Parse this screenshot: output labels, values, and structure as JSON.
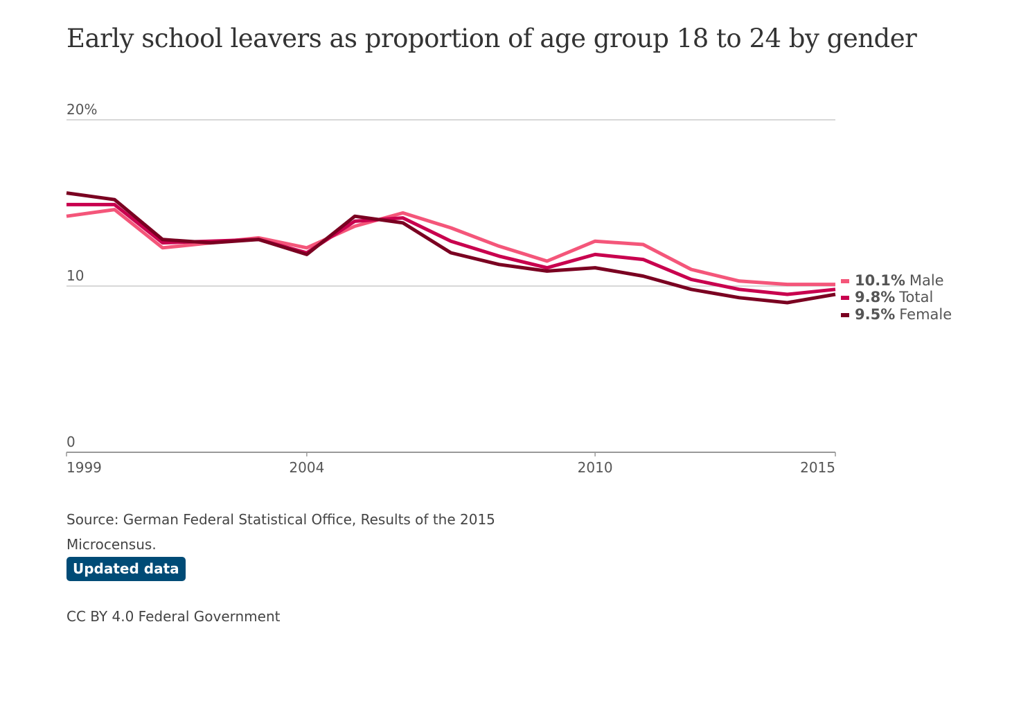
{
  "chart_data": {
    "type": "line",
    "title": "Early school leavers as proportion of age group 18 to 24 by gender",
    "x": [
      1999,
      2000,
      2001,
      2002,
      2003,
      2004,
      2005,
      2006,
      2007,
      2008,
      2009,
      2010,
      2011,
      2012,
      2013,
      2014,
      2015
    ],
    "x_ticks": [
      "1999",
      "2004",
      "2010",
      "2015"
    ],
    "y_ticks": [
      "20%",
      "10",
      "0"
    ],
    "ylim": [
      0,
      20
    ],
    "xlim": [
      1999,
      2015
    ],
    "grid": true,
    "legend": "right, at line ends",
    "series": [
      {
        "name": "Male",
        "label_value": "10.1%",
        "color": "#f4567a",
        "values": [
          14.2,
          14.6,
          12.3,
          12.6,
          12.9,
          12.3,
          13.6,
          14.4,
          13.5,
          12.4,
          11.5,
          12.7,
          12.5,
          11.0,
          10.3,
          10.1,
          10.1
        ]
      },
      {
        "name": "Total",
        "label_value": "9.8%",
        "color": "#c8004e",
        "values": [
          14.9,
          14.9,
          12.6,
          12.7,
          12.8,
          12.0,
          13.9,
          14.1,
          12.7,
          11.8,
          11.1,
          11.9,
          11.6,
          10.4,
          9.8,
          9.5,
          9.8
        ]
      },
      {
        "name": "Female",
        "label_value": "9.5%",
        "color": "#7a0021",
        "values": [
          15.6,
          15.2,
          12.8,
          12.6,
          12.8,
          11.9,
          14.2,
          13.8,
          12.0,
          11.3,
          10.9,
          11.1,
          10.6,
          9.8,
          9.3,
          9.0,
          9.5
        ]
      }
    ]
  },
  "source": "Source: German Federal Statistical Office, Results of the 2015 Microcensus.",
  "updated_button_label": "Updated data",
  "license": "CC BY 4.0 Federal Government"
}
